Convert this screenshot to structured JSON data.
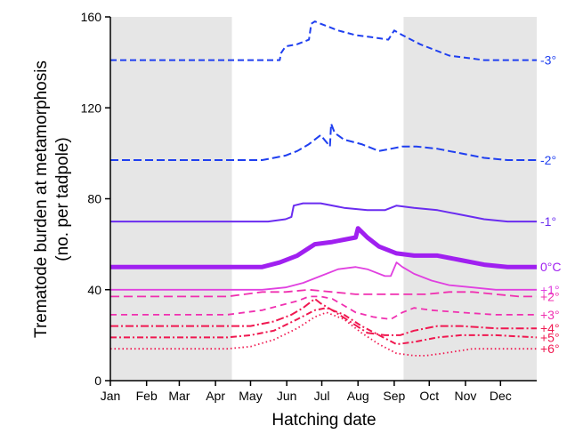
{
  "chart_data": {
    "type": "line",
    "xlabel": "Hatching date",
    "ylabel": "Trematode burden at metamorphosis",
    "ylabel_sub": "(no. per tadpole)",
    "xlim": [
      0,
      365
    ],
    "ylim": [
      0,
      160
    ],
    "xticks": [
      {
        "label": "Jan",
        "x": 0
      },
      {
        "label": "Feb",
        "x": 31
      },
      {
        "label": "Mar",
        "x": 59
      },
      {
        "label": "Apr",
        "x": 90
      },
      {
        "label": "May",
        "x": 120
      },
      {
        "label": "Jun",
        "x": 151
      },
      {
        "label": "Jul",
        "x": 181
      },
      {
        "label": "Aug",
        "x": 212
      },
      {
        "label": "Sep",
        "x": 243
      },
      {
        "label": "Oct",
        "x": 273
      },
      {
        "label": "Nov",
        "x": 304
      },
      {
        "label": "Dec",
        "x": 334
      }
    ],
    "yticks": [
      0,
      40,
      80,
      120,
      160
    ],
    "shaded_ranges": [
      [
        0,
        104
      ],
      [
        251,
        365
      ]
    ],
    "colors": {
      "shade": "#e6e6e6",
      "blue": "#1f3ff0",
      "violet": "#6a2cf0",
      "purple": "#a020f0",
      "magenta": "#e040e0",
      "pink": "#f030b0",
      "red": "#f01850"
    },
    "series": [
      {
        "name": "-3°",
        "color": "#1f3ff0",
        "dash": "7,4",
        "width": 2,
        "x": [
          0,
          145,
          146,
          150,
          160,
          170,
          172,
          175,
          180,
          185,
          195,
          210,
          225,
          238,
          243,
          250,
          265,
          290,
          320,
          350,
          365
        ],
        "y": [
          141,
          141,
          144,
          147,
          148,
          150,
          157,
          158,
          157,
          156,
          154,
          152,
          151,
          150,
          154,
          152,
          148,
          143,
          141,
          141,
          141
        ]
      },
      {
        "name": "-2°",
        "color": "#1f3ff0",
        "dash": "9,4",
        "width": 2,
        "x": [
          0,
          130,
          140,
          150,
          160,
          170,
          180,
          188,
          189,
          192,
          200,
          215,
          230,
          240,
          250,
          262,
          280,
          300,
          320,
          340,
          365
        ],
        "y": [
          97,
          97,
          98,
          99,
          101,
          104,
          108,
          103,
          113,
          109,
          106,
          104,
          101,
          102,
          103,
          103,
          102,
          100,
          98,
          97,
          97
        ]
      },
      {
        "name": "-1°",
        "color": "#6a2cf0",
        "dash": "",
        "width": 2,
        "x": [
          0,
          120,
          135,
          150,
          155,
          157,
          165,
          180,
          200,
          220,
          235,
          245,
          260,
          280,
          300,
          320,
          340,
          365
        ],
        "y": [
          70,
          70,
          70,
          71,
          72,
          77,
          78,
          78,
          76,
          75,
          75,
          77,
          76,
          75,
          73,
          71,
          70,
          70
        ]
      },
      {
        "name": "0°C",
        "color": "#a020f0",
        "dash": "",
        "width": 5,
        "x": [
          0,
          115,
          130,
          145,
          160,
          175,
          190,
          200,
          210,
          212,
          220,
          230,
          245,
          260,
          280,
          300,
          320,
          340,
          365
        ],
        "y": [
          50,
          50,
          50,
          52,
          55,
          60,
          61,
          62,
          63,
          67,
          63,
          59,
          56,
          55,
          55,
          53,
          51,
          50,
          50
        ]
      },
      {
        "name": "+1°",
        "color": "#e040e0",
        "dash": "",
        "width": 1.8,
        "x": [
          0,
          110,
          130,
          150,
          165,
          180,
          195,
          210,
          220,
          235,
          240,
          245,
          250,
          260,
          275,
          290,
          310,
          330,
          350,
          365
        ],
        "y": [
          40,
          40,
          40,
          41,
          43,
          46,
          49,
          50,
          49,
          46,
          46,
          52,
          50,
          47,
          44,
          42,
          41,
          40,
          40,
          40
        ]
      },
      {
        "name": "+2°",
        "color": "#f030b0",
        "dash": "10,5",
        "width": 1.8,
        "x": [
          0,
          80,
          100,
          115,
          130,
          150,
          170,
          190,
          210,
          230,
          250,
          270,
          290,
          310,
          330,
          350,
          365
        ],
        "y": [
          37,
          37,
          37,
          38,
          39,
          39,
          40,
          39,
          38,
          38,
          38,
          38,
          39,
          39,
          38,
          37,
          37
        ]
      },
      {
        "name": "+3°",
        "color": "#f030b0",
        "dash": "7,5",
        "width": 1.8,
        "x": [
          0,
          100,
          115,
          130,
          145,
          160,
          170,
          180,
          190,
          200,
          210,
          225,
          240,
          250,
          260,
          275,
          300,
          330,
          365
        ],
        "y": [
          29,
          29,
          30,
          31,
          33,
          35,
          37,
          37,
          36,
          33,
          30,
          28,
          27,
          30,
          32,
          31,
          30,
          29,
          29
        ]
      },
      {
        "name": "+4°",
        "color": "#f01850",
        "dash": "9,3,2,3",
        "width": 2,
        "x": [
          0,
          100,
          120,
          140,
          155,
          165,
          170,
          175,
          180,
          190,
          205,
          220,
          235,
          248,
          260,
          280,
          300,
          330,
          365
        ],
        "y": [
          24,
          24,
          24,
          26,
          29,
          32,
          34,
          36,
          34,
          31,
          26,
          21,
          20,
          20,
          22,
          24,
          24,
          23,
          23
        ]
      },
      {
        "name": "+5°",
        "color": "#f01850",
        "dash": "7,3,2,3",
        "width": 2,
        "x": [
          0,
          100,
          120,
          140,
          160,
          175,
          185,
          200,
          215,
          230,
          245,
          260,
          280,
          300,
          330,
          365
        ],
        "y": [
          19,
          19,
          20,
          22,
          27,
          31,
          32,
          29,
          24,
          20,
          16,
          17,
          19,
          20,
          20,
          19
        ]
      },
      {
        "name": "+6°",
        "color": "#f01850",
        "dash": "1.5,3",
        "width": 1.8,
        "x": [
          0,
          100,
          120,
          140,
          160,
          175,
          185,
          200,
          215,
          230,
          245,
          260,
          270,
          285,
          310,
          340,
          365
        ],
        "y": [
          14,
          14,
          15,
          18,
          23,
          28,
          30,
          27,
          21,
          16,
          12,
          11,
          11,
          12,
          14,
          14,
          14
        ]
      }
    ]
  }
}
